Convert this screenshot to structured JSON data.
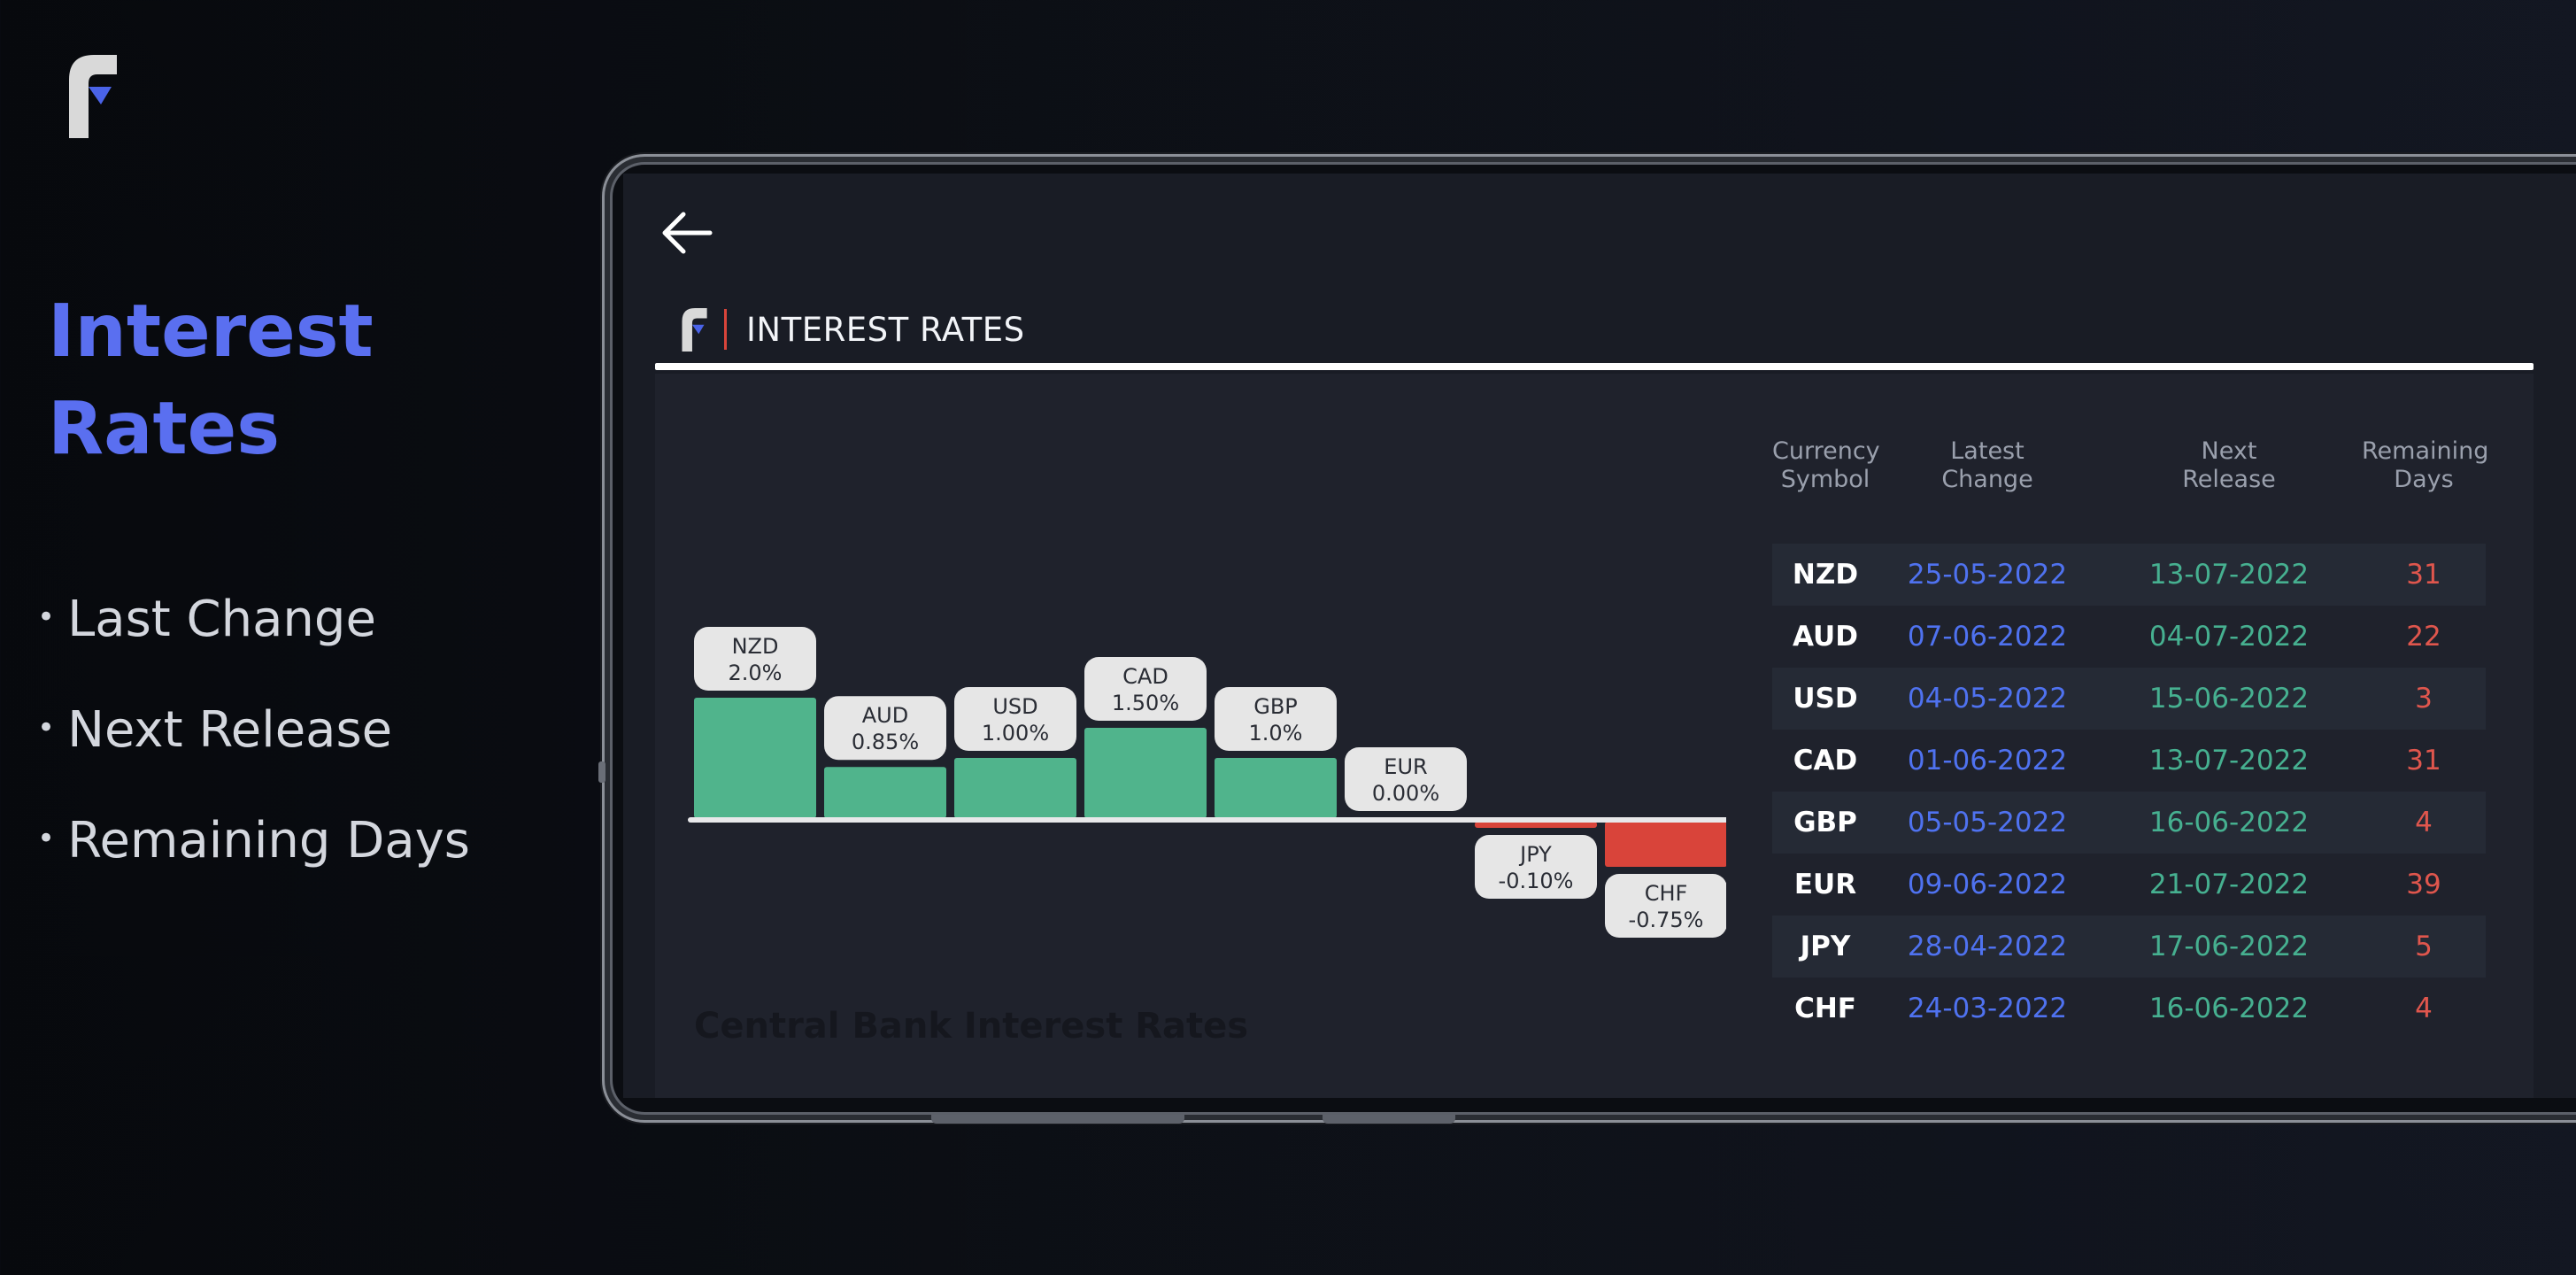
{
  "promo": {
    "title_line1": "Interest",
    "title_line2": "Rates",
    "bullets": [
      "Last Change",
      "Next Release",
      "Remaining Days"
    ],
    "bullet_glyph": "•"
  },
  "app": {
    "title": "INTEREST RATES",
    "back_icon": "arrow-left-icon",
    "logo_icon": "app-logo-icon"
  },
  "colors": {
    "accent": "#5a6ff0",
    "positive": "#50b48c",
    "negative": "#d9443a",
    "label_bg": "#e6e6e6"
  },
  "chart_data": {
    "type": "bar",
    "title": "Central Bank Interest Rates",
    "categories": [
      "NZD",
      "AUD",
      "USD",
      "CAD",
      "GBP",
      "EUR",
      "JPY",
      "CHF"
    ],
    "values": [
      2.0,
      0.85,
      1.0,
      1.5,
      1.0,
      0.0,
      -0.1,
      -0.75
    ],
    "labels": [
      "2.0%",
      "0.85%",
      "1.00%",
      "1.50%",
      "1.0%",
      "0.00%",
      "-0.10%",
      "-0.75%"
    ]
  },
  "table": {
    "headers": [
      [
        "Currency",
        "Symbol"
      ],
      [
        "Latest",
        "Change"
      ],
      [
        "Next",
        "Release"
      ],
      [
        "Remaining",
        "Days"
      ]
    ],
    "rows": [
      {
        "symbol": "NZD",
        "latest": "25-05-2022",
        "next": "13-07-2022",
        "days": "31"
      },
      {
        "symbol": "AUD",
        "latest": "07-06-2022",
        "next": "04-07-2022",
        "days": "22"
      },
      {
        "symbol": "USD",
        "latest": "04-05-2022",
        "next": "15-06-2022",
        "days": "3"
      },
      {
        "symbol": "CAD",
        "latest": "01-06-2022",
        "next": "13-07-2022",
        "days": "31"
      },
      {
        "symbol": "GBP",
        "latest": "05-05-2022",
        "next": "16-06-2022",
        "days": "4"
      },
      {
        "symbol": "EUR",
        "latest": "09-06-2022",
        "next": "21-07-2022",
        "days": "39"
      },
      {
        "symbol": "JPY",
        "latest": "28-04-2022",
        "next": "17-06-2022",
        "days": "5"
      },
      {
        "symbol": "CHF",
        "latest": "24-03-2022",
        "next": "16-06-2022",
        "days": "4"
      }
    ]
  }
}
